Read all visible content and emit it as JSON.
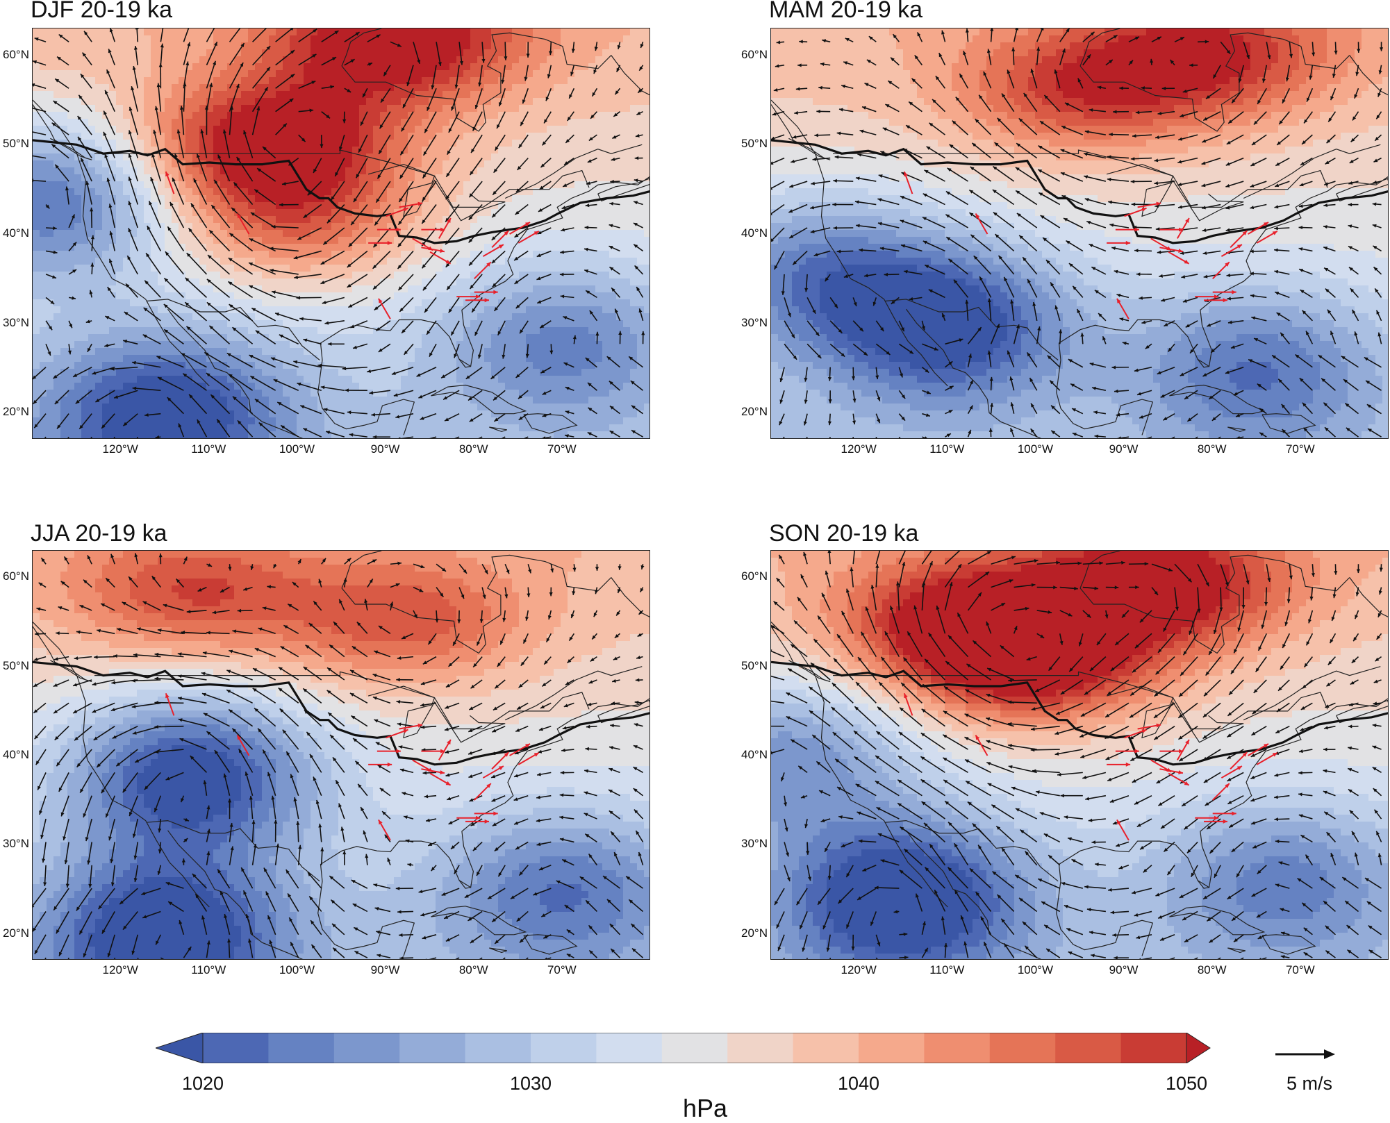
{
  "panels": [
    {
      "id": "djf",
      "title": "DJF 20-19 ka",
      "high_centers": [
        {
          "lon": -103,
          "lat": 50,
          "strength": 1.0
        },
        {
          "lon": -89,
          "lat": 61.5,
          "strength": 0.9
        },
        {
          "lon": -100,
          "lat": 41,
          "strength": 0.55
        }
      ],
      "low_centers": [
        {
          "lon": -128,
          "lat": 44,
          "strength": 0.8
        },
        {
          "lon": -115,
          "lat": 20,
          "strength": 0.85
        },
        {
          "lon": -70,
          "lat": 28,
          "strength": 0.55
        }
      ]
    },
    {
      "id": "mam",
      "title": "MAM 20-19 ka",
      "high_centers": [
        {
          "lon": -95,
          "lat": 56,
          "strength": 0.6
        },
        {
          "lon": -80,
          "lat": 60,
          "strength": 0.65
        }
      ],
      "low_centers": [
        {
          "lon": -110,
          "lat": 30,
          "strength": 0.9
        },
        {
          "lon": -125,
          "lat": 36,
          "strength": 0.6
        },
        {
          "lon": -75,
          "lat": 25,
          "strength": 0.6
        }
      ]
    },
    {
      "id": "jja",
      "title": "JJA 20-19 ka",
      "high_centers": [
        {
          "lon": -112,
          "lat": 58,
          "strength": 0.55
        },
        {
          "lon": -88,
          "lat": 55,
          "strength": 0.55
        }
      ],
      "low_centers": [
        {
          "lon": -112,
          "lat": 38,
          "strength": 1.0
        },
        {
          "lon": -115,
          "lat": 20,
          "strength": 0.9
        },
        {
          "lon": -70,
          "lat": 25,
          "strength": 0.6
        }
      ]
    },
    {
      "id": "son",
      "title": "SON 20-19 ka",
      "high_centers": [
        {
          "lon": -108,
          "lat": 55,
          "strength": 0.85
        },
        {
          "lon": -86,
          "lat": 59,
          "strength": 0.9
        },
        {
          "lon": -100,
          "lat": 50,
          "strength": 0.8
        }
      ],
      "low_centers": [
        {
          "lon": -115,
          "lat": 24,
          "strength": 1.0
        },
        {
          "lon": -128,
          "lat": 40,
          "strength": 0.6
        },
        {
          "lon": -72,
          "lat": 26,
          "strength": 0.55
        }
      ]
    }
  ],
  "map_extent": {
    "lon_min": -130,
    "lon_max": -60,
    "lat_min": 17,
    "lat_max": 63
  },
  "lat_ticks": [
    "60°N",
    "50°N",
    "40°N",
    "30°N",
    "20°N"
  ],
  "lat_values": [
    60,
    50,
    40,
    30,
    20
  ],
  "lon_ticks": [
    "120°W",
    "110°W",
    "100°W",
    "90°W",
    "80°W",
    "70°W"
  ],
  "lon_values": [
    -120,
    -110,
    -100,
    -90,
    -80,
    -70
  ],
  "colorbar": {
    "ticks": [
      "1020",
      "1030",
      "1040",
      "1050"
    ],
    "tick_values": [
      1020,
      1030,
      1040,
      1050
    ],
    "min": 1020,
    "max": 1050,
    "step": 1.5,
    "unit": "hPa",
    "colors": [
      "#3a56a6",
      "#4d68b4",
      "#6582c2",
      "#7c97cd",
      "#94acd8",
      "#aabfe2",
      "#bfd0ea",
      "#d2ddef",
      "#e2e2e4",
      "#f0d4c8",
      "#f6c1aa",
      "#f5a98c",
      "#ef8e70",
      "#e57457",
      "#d95a45",
      "#c93c34",
      "#b82026"
    ]
  },
  "reference_vector": {
    "label": "5 m/s",
    "speed": 5
  },
  "colors": {
    "proxy_arrows": "#e8202a",
    "wind_arrows": "#111111",
    "ice_margin": "#111111",
    "coast": "#222222"
  }
}
